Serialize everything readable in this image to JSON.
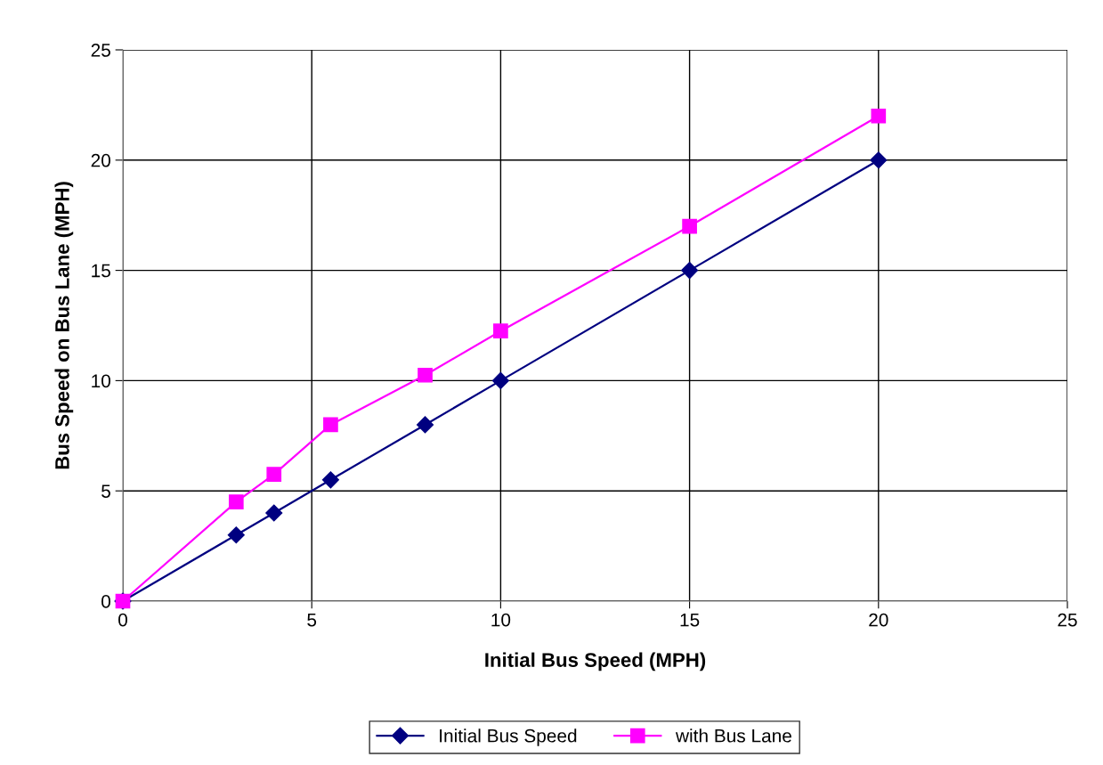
{
  "chart_data": {
    "type": "line",
    "xlabel": "Initial Bus Speed (MPH)",
    "ylabel": "Bus Speed on Bus Lane (MPH)",
    "xlim": [
      0,
      25
    ],
    "xticks": [
      0,
      5,
      10,
      15,
      20,
      25
    ],
    "ylim": [
      0,
      25
    ],
    "yticks": [
      0,
      5,
      10,
      15,
      20,
      25
    ],
    "grid": true,
    "legend": "bottom",
    "line_style": "solid",
    "series": [
      {
        "name": "Initial Bus Speed",
        "color": "#000080",
        "marker": "diamond",
        "x": [
          0,
          3,
          4,
          5.5,
          8,
          10,
          15,
          20
        ],
        "values": [
          0,
          3,
          4,
          5.5,
          8,
          10,
          15,
          20
        ]
      },
      {
        "name": "with Bus Lane",
        "color": "#ff00ff",
        "marker": "square",
        "x": [
          0,
          3,
          4,
          5.5,
          8,
          10,
          15,
          20
        ],
        "values": [
          0,
          4.5,
          5.75,
          8,
          10.25,
          12.25,
          17,
          22
        ]
      }
    ]
  }
}
